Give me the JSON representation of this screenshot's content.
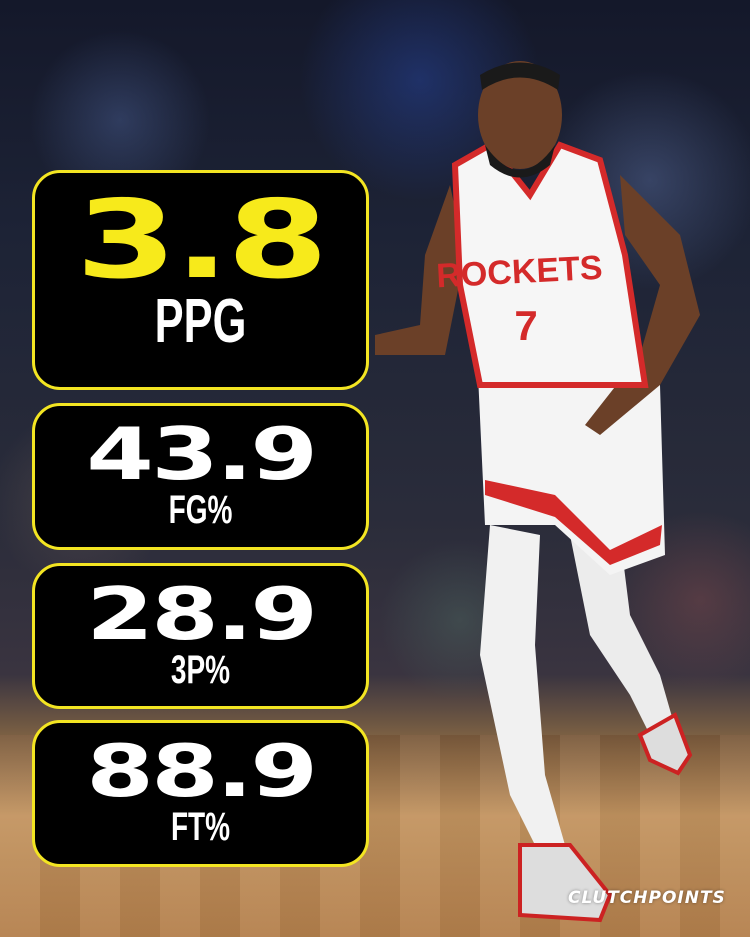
{
  "stats": [
    {
      "value": "3.8",
      "label": "PPG"
    },
    {
      "value": "43.9",
      "label": "FG%"
    },
    {
      "value": "28.9",
      "label": "3P%"
    },
    {
      "value": "88.9",
      "label": "FT%"
    }
  ],
  "player": {
    "jersey_text": "ROCKETS",
    "jersey_number": "7"
  },
  "brand": "CLUTCHPOINTS",
  "colors": {
    "box_border": "#f3e522",
    "highlight_value": "#f7ea1b",
    "box_bg": "#000000",
    "team_red": "#d42a2a"
  }
}
